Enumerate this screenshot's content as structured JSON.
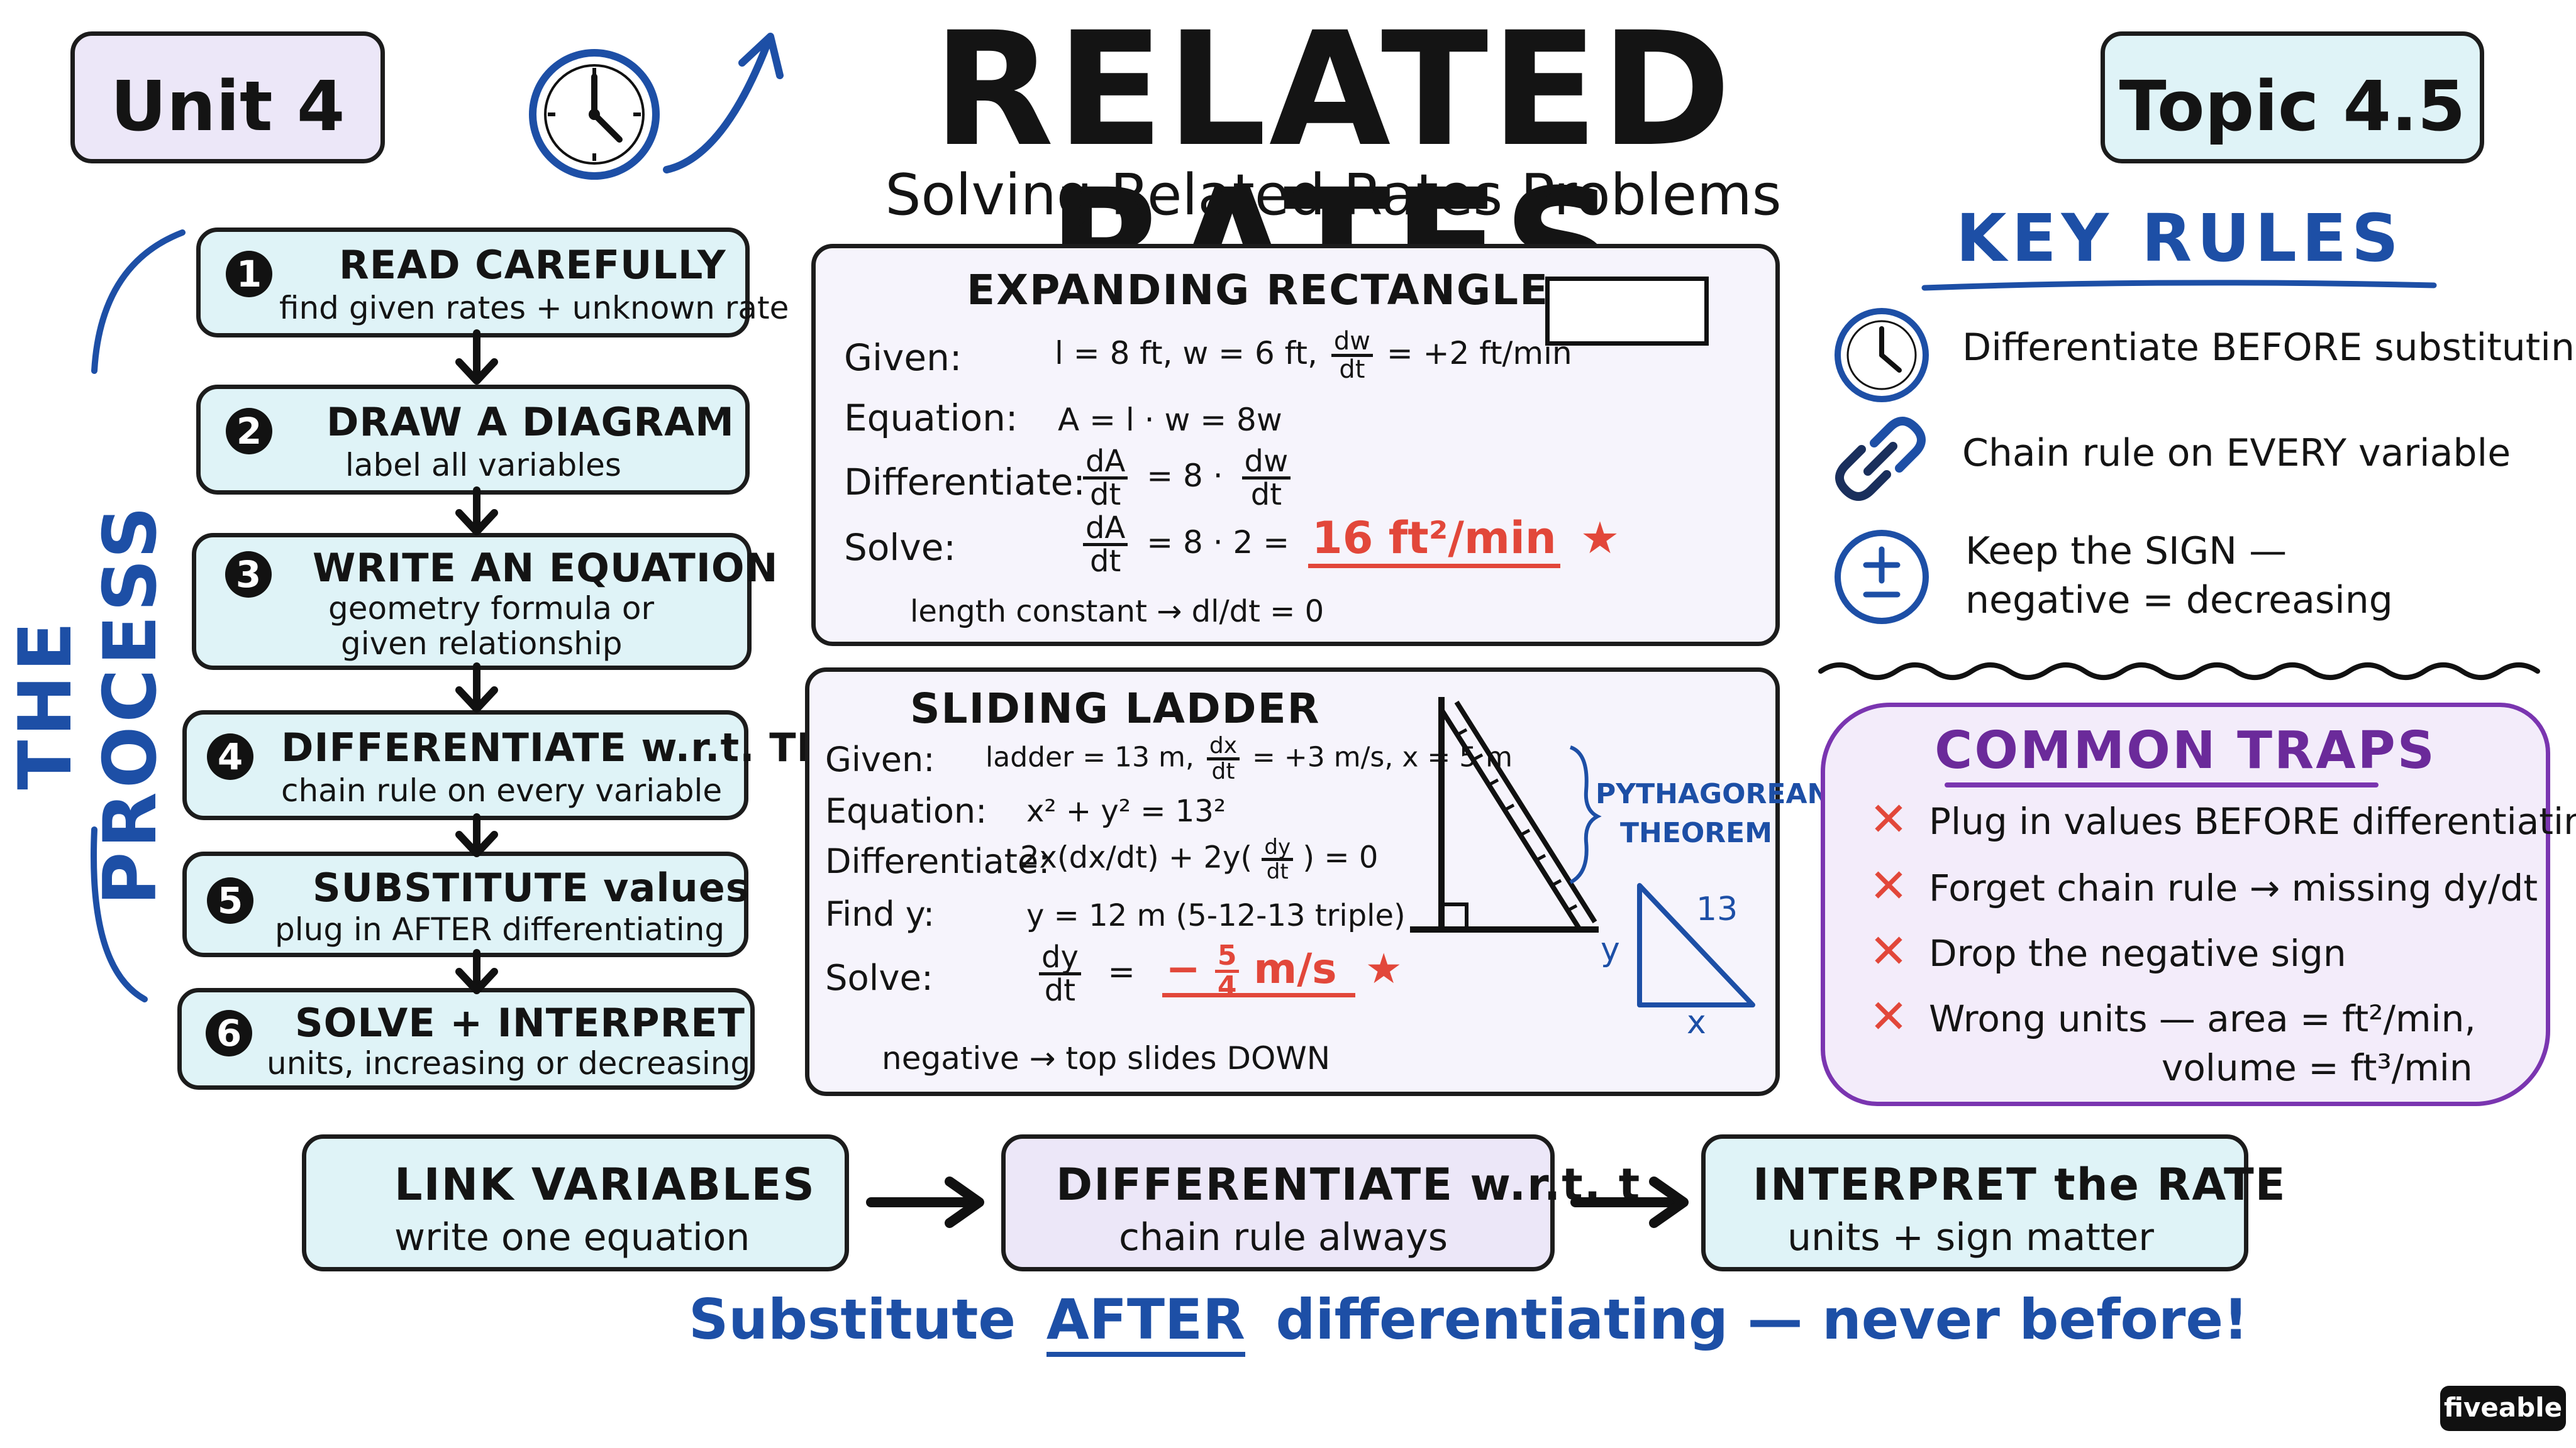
{
  "header": {
    "unit_label": "Unit 4",
    "topic_label": "Topic 4.5",
    "title": "RELATED RATES",
    "subtitle": "Solving Related Rates Problems"
  },
  "process": {
    "side_label": "THE PROCESS",
    "steps": [
      {
        "num": "1",
        "title": "READ CAREFULLY",
        "sub": "find given rates + unknown rate"
      },
      {
        "num": "2",
        "title": "DRAW A DIAGRAM",
        "sub": "label all variables"
      },
      {
        "num": "3",
        "title": "WRITE AN EQUATION",
        "sub": "geometry formula or",
        "sub2": "given relationship"
      },
      {
        "num": "4",
        "title": "DIFFERENTIATE w.r.t. TIME",
        "sub": "chain rule on every variable"
      },
      {
        "num": "5",
        "title": "SUBSTITUTE values",
        "sub": "plug in AFTER differentiating"
      },
      {
        "num": "6",
        "title": "SOLVE + INTERPRET",
        "sub": "units, increasing or decreasing"
      }
    ]
  },
  "rectangle": {
    "title": "EXPANDING RECTANGLE",
    "given_label": "Given:",
    "given_val": "l = 8 ft, w = 6 ft,",
    "given_rate_num": "dw",
    "given_rate_den": "dt",
    "given_rate_val": "= +2 ft/min",
    "equation_label": "Equation:",
    "equation_val": "A = l · w = 8w",
    "diff_label": "Differentiate:",
    "diff_lhs_num": "dA",
    "diff_lhs_den": "dt",
    "diff_mid": "= 8 ·",
    "diff_rhs_num": "dw",
    "diff_rhs_den": "dt",
    "solve_label": "Solve:",
    "solve_num": "dA",
    "solve_den": "dt",
    "solve_mid": "= 8 · 2 =",
    "solve_answer": "16 ft²/min",
    "note": "length constant → dl/dt = 0"
  },
  "ladder": {
    "title": "SLIDING LADDER",
    "given_label": "Given:",
    "given_val": "ladder = 13 m,",
    "given_rate_num": "dx",
    "given_rate_den": "dt",
    "given_rate_val": "= +3 m/s, x = 5 m",
    "equation_label": "Equation:",
    "equation_val": "x² + y² = 13²",
    "diff_label": "Differentiate:",
    "diff_val_a": "2x(dx/dt) + 2y(",
    "diff_frac_num": "dy",
    "diff_frac_den": "dt",
    "diff_val_b": ") = 0",
    "find_label": "Find y:",
    "find_val": "y = 12 m  (5-12-13 triple)",
    "solve_label": "Solve:",
    "solve_num": "dy",
    "solve_den": "dt",
    "solve_eq": "=",
    "solve_sign": "−",
    "solve_ans_num": "5",
    "solve_ans_den": "4",
    "solve_unit": "m/s",
    "note": "negative → top slides DOWN",
    "pyth_line1": "PYTHAGOREAN",
    "pyth_line2": "THEOREM",
    "tri_hyp": "13",
    "tri_y": "y",
    "tri_x": "x"
  },
  "key_rules": {
    "title": "KEY RULES",
    "rules": [
      {
        "icon": "clock-icon",
        "text": "Differentiate BEFORE substituting"
      },
      {
        "icon": "chain-link-icon",
        "text": "Chain rule on EVERY variable"
      },
      {
        "icon": "plus-minus-icon",
        "text": "Keep the SIGN —",
        "text2": "negative = decreasing"
      }
    ]
  },
  "traps": {
    "title": "COMMON TRAPS",
    "items": [
      {
        "text": "Plug in values BEFORE differentiating"
      },
      {
        "text": "Forget chain rule → missing dy/dt"
      },
      {
        "text": "Drop the negative sign"
      },
      {
        "text": "Wrong units — area = ft²/min,",
        "text2": "volume = ft³/min"
      }
    ]
  },
  "flow": [
    {
      "title": "LINK VARIABLES",
      "sub": "write one equation"
    },
    {
      "title": "DIFFERENTIATE w.r.t. t",
      "sub": "chain rule always"
    },
    {
      "title": "INTERPRET the RATE",
      "sub": "units + sign matter"
    }
  ],
  "footer": {
    "pre": "Substitute",
    "emph": "AFTER",
    "post": "differentiating — never before!"
  },
  "brand": "fiveable",
  "colors": {
    "blue": "#1d4fa6",
    "red": "#e2473a",
    "purple": "#6b2a9a",
    "cyan_fill": "#dff3f7",
    "lavender_fill": "#ece7f8"
  }
}
